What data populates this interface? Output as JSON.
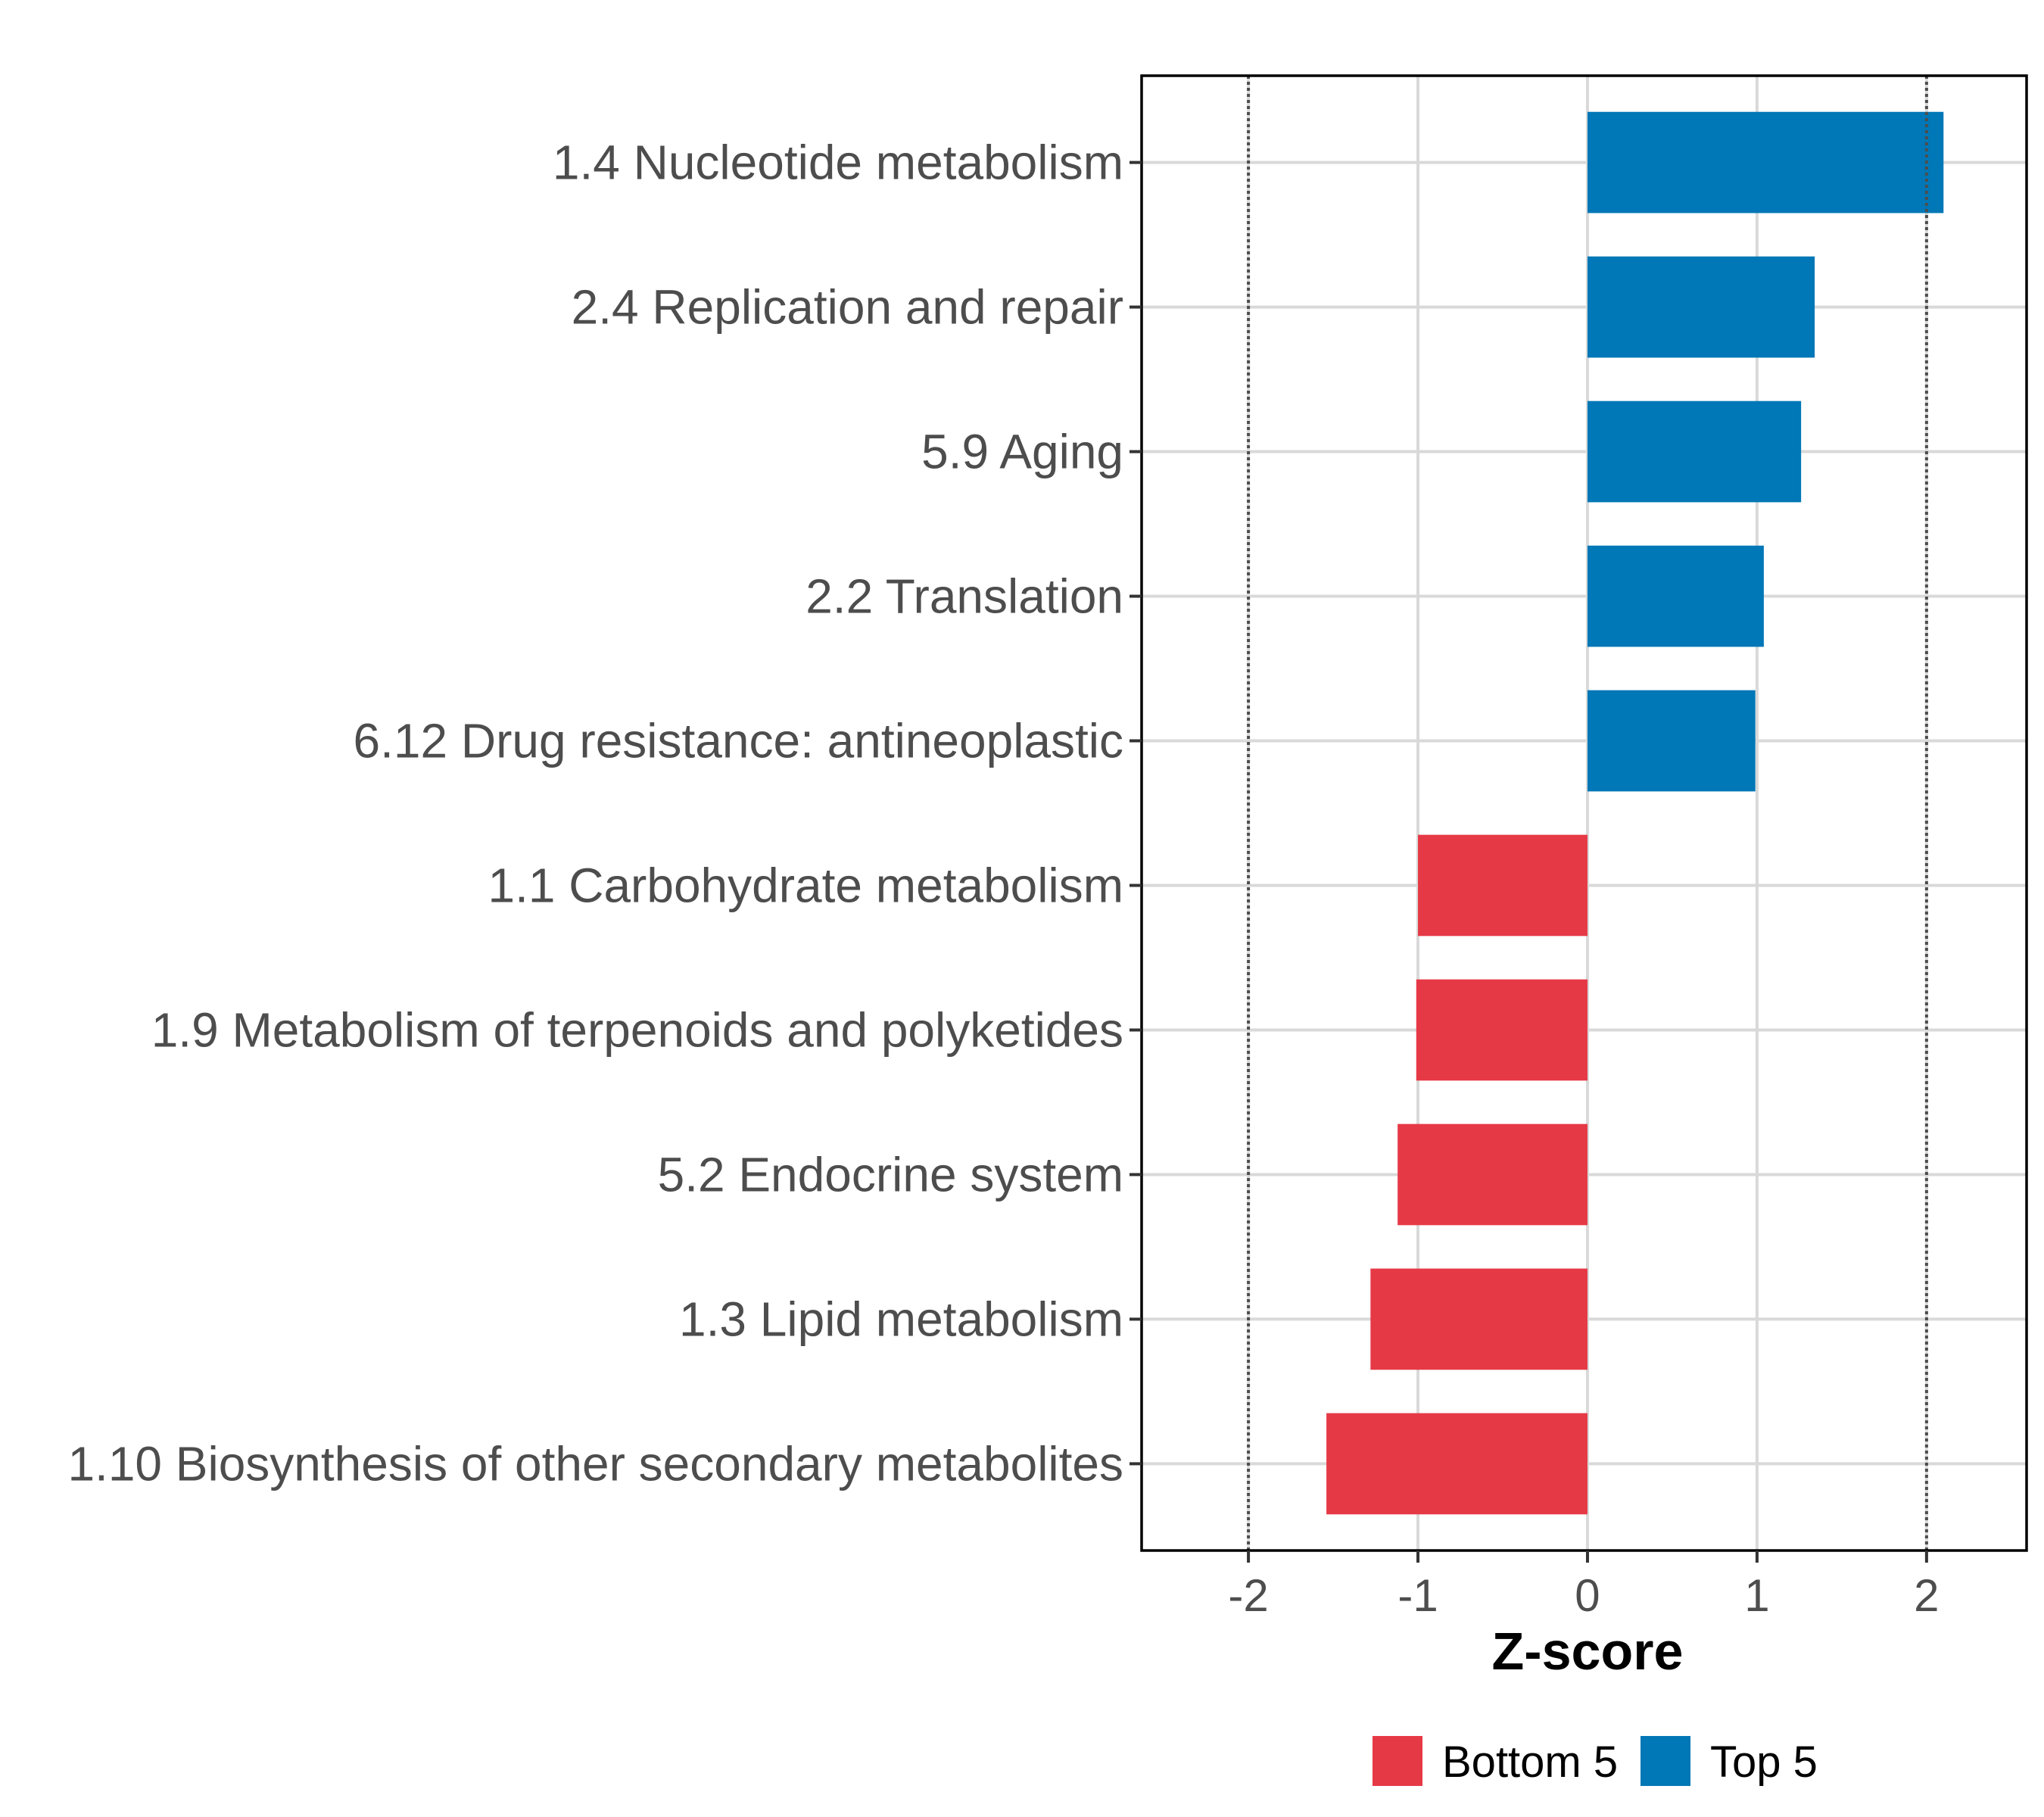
{
  "chart_data": {
    "type": "bar",
    "orientation": "horizontal",
    "title": "",
    "xlabel": "Z-score",
    "ylabel": "",
    "xlim": [
      -2.63,
      2.59
    ],
    "xticks": [
      -2,
      -1,
      0,
      1,
      2
    ],
    "xtick_labels": [
      "-2",
      "-1",
      "0",
      "1",
      "2"
    ],
    "grid": true,
    "reference_lines": [
      {
        "x": -2,
        "style": "dotted"
      },
      {
        "x": 2,
        "style": "dotted"
      }
    ],
    "categories": [
      "1.4 Nucleotide metabolism",
      "2.4 Replication and repair",
      "5.9 Aging",
      "2.2 Translation",
      "6.12 Drug resistance: antineoplastic",
      "1.1 Carbohydrate metabolism",
      "1.9 Metabolism of terpenoids and polyketides",
      "5.2 Endocrine system",
      "1.3 Lipid metabolism",
      "1.10 Biosynthesis of other secondary metabolites"
    ],
    "values": [
      2.1,
      1.34,
      1.26,
      1.04,
      0.99,
      -1.0,
      -1.01,
      -1.12,
      -1.28,
      -1.54
    ],
    "groups": [
      "Top 5",
      "Top 5",
      "Top 5",
      "Top 5",
      "Top 5",
      "Bottom 5",
      "Bottom 5",
      "Bottom 5",
      "Bottom 5",
      "Bottom 5"
    ],
    "legend": {
      "placement": "bottom",
      "entries": [
        {
          "label": "Bottom 5",
          "color": "#E63946"
        },
        {
          "label": "Top 5",
          "color": "#0077B6"
        }
      ]
    },
    "colors": {
      "Top 5": "#0077B6",
      "Bottom 5": "#E63946"
    }
  }
}
